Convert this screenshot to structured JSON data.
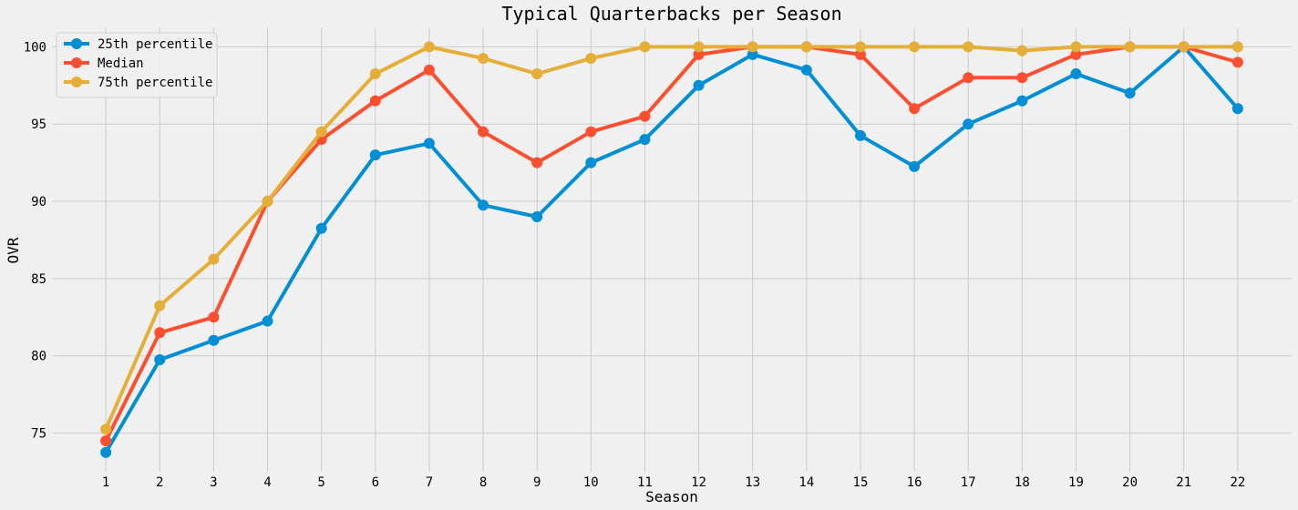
{
  "chart_data": {
    "type": "line",
    "title": "Typical Quarterbacks per Season",
    "xlabel": "Season",
    "ylabel": "OVR",
    "x": [
      1,
      2,
      3,
      4,
      5,
      6,
      7,
      8,
      9,
      10,
      11,
      12,
      13,
      14,
      15,
      16,
      17,
      18,
      19,
      20,
      21,
      22
    ],
    "xlim": [
      0,
      23
    ],
    "ylim": [
      72.5,
      101.2
    ],
    "yticks": [
      75,
      80,
      85,
      90,
      95,
      100
    ],
    "grid": true,
    "legend_position": "top-left",
    "series": [
      {
        "name": "25th percentile",
        "color": "#008fd5",
        "values": [
          73.75,
          79.75,
          81,
          82.25,
          88.25,
          93,
          93.75,
          89.75,
          89,
          92.5,
          94,
          97.5,
          99.5,
          98.5,
          94.25,
          92.25,
          95,
          96.5,
          98.25,
          97,
          100,
          96
        ]
      },
      {
        "name": "Median",
        "color": "#fc4f30",
        "values": [
          74.5,
          81.5,
          82.5,
          90,
          94,
          96.5,
          98.5,
          94.5,
          92.5,
          94.5,
          95.5,
          99.5,
          100,
          100,
          99.5,
          96,
          98,
          98,
          99.5,
          100,
          100,
          99
        ]
      },
      {
        "name": "75th percentile",
        "color": "#e5ae38",
        "values": [
          75.25,
          83.25,
          86.25,
          90,
          94.5,
          98.25,
          100,
          99.25,
          98.25,
          99.25,
          100,
          100,
          100,
          100,
          100,
          100,
          100,
          99.75,
          100,
          100,
          100,
          100
        ]
      }
    ]
  }
}
